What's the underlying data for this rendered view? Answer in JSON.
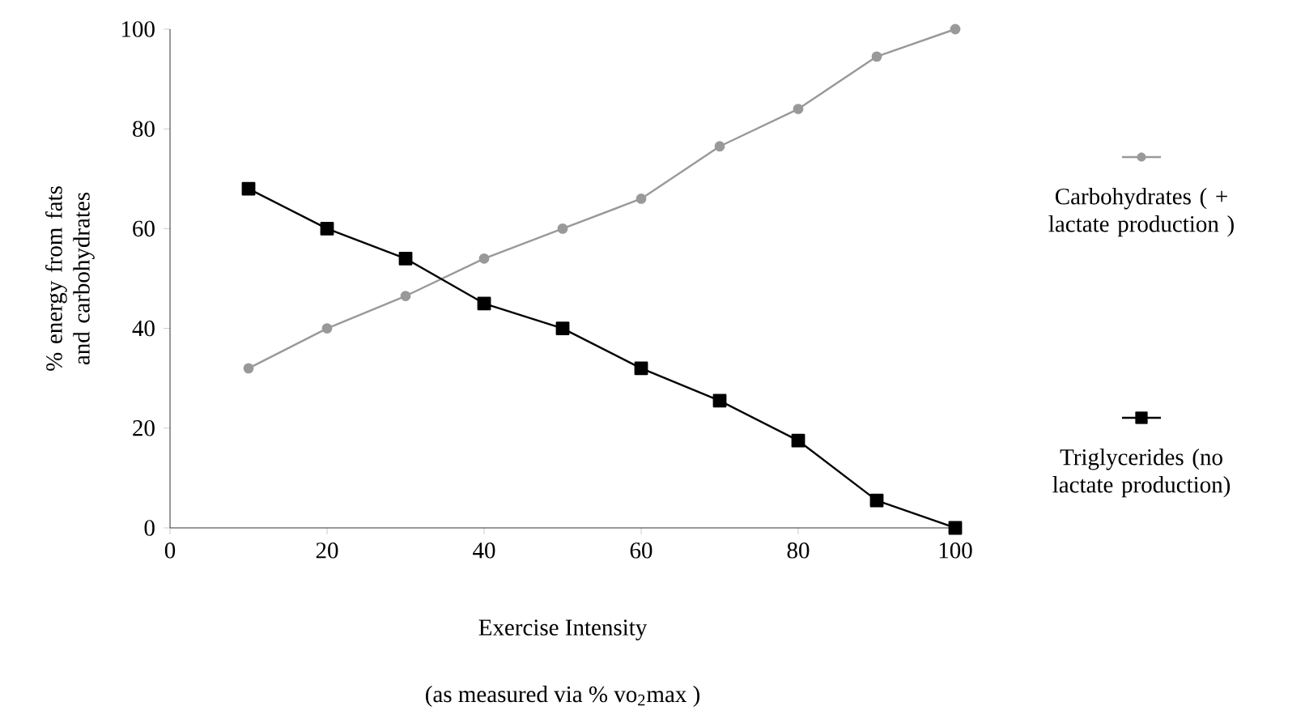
{
  "chart_data": {
    "type": "line",
    "xlabel": "Exercise Intensity",
    "ylabel": "% energy from fats and carbohydrates",
    "annotations": [
      "(as measured via % vo$_{2}$max )"
    ],
    "x": [
      10,
      20,
      30,
      40,
      50,
      60,
      70,
      80,
      90,
      100
    ],
    "series": [
      {
        "name": "Carbohydrates ( + lactate production )",
        "color": "#999999",
        "marker": "circle",
        "values": [
          32,
          40,
          46.5,
          54,
          60,
          66,
          76.5,
          84,
          94.5,
          100
        ]
      },
      {
        "name": "Triglycerides (no lactate production)",
        "color": "#000000",
        "marker": "square",
        "values": [
          68,
          60,
          54,
          45,
          40,
          32,
          25.5,
          17.5,
          5.5,
          0
        ]
      }
    ],
    "xlim": [
      0,
      100
    ],
    "ylim": [
      0,
      100
    ],
    "xticks": [
      0,
      20,
      40,
      60,
      80,
      100
    ],
    "yticks": [
      0,
      20,
      40,
      60,
      80,
      100
    ],
    "legend": "right",
    "line_style": "solid"
  }
}
